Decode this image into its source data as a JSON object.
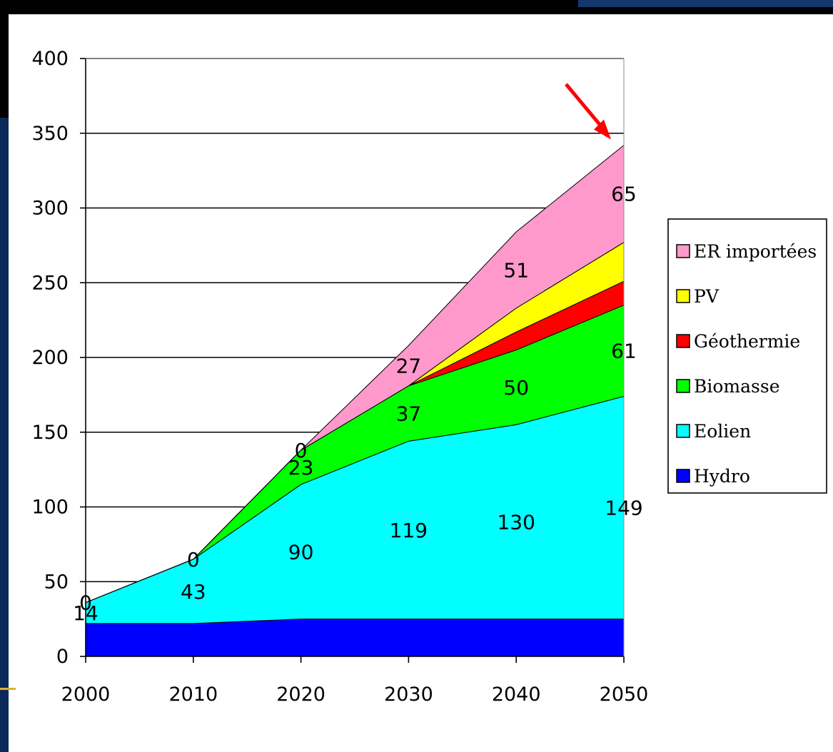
{
  "chart_data": {
    "type": "area",
    "stacked": true,
    "title": "",
    "xlabel": "",
    "ylabel": "",
    "x": [
      2000,
      2010,
      2020,
      2030,
      2040,
      2050
    ],
    "ylim": [
      0,
      400
    ],
    "yticks": [
      0,
      50,
      100,
      150,
      200,
      250,
      300,
      350,
      400
    ],
    "grid": "horizontal",
    "legend_position": "right",
    "series": [
      {
        "name": "Hydro",
        "color": "#0000ff",
        "values": [
          22,
          22,
          25,
          25,
          25,
          25
        ],
        "labels": [
          "",
          "",
          "",
          "",
          "",
          ""
        ]
      },
      {
        "name": "Eolien",
        "color": "#00ffff",
        "values": [
          14,
          43,
          90,
          119,
          130,
          149
        ],
        "labels": [
          "14",
          "43",
          "90",
          "119",
          "130",
          "149"
        ]
      },
      {
        "name": "Biomasse",
        "color": "#00ff00",
        "values": [
          0,
          0,
          23,
          37,
          50,
          61
        ],
        "labels": [
          "",
          "",
          "23",
          "37",
          "50",
          "61"
        ]
      },
      {
        "name": "Géothermie",
        "color": "#ff0000",
        "values": [
          0,
          0,
          0,
          0,
          12,
          16
        ],
        "labels": [
          "",
          "",
          "",
          "",
          "",
          ""
        ]
      },
      {
        "name": "PV",
        "color": "#ffff00",
        "values": [
          0,
          0,
          0,
          0,
          16,
          26
        ],
        "labels": [
          "",
          "",
          "",
          "",
          "",
          ""
        ]
      },
      {
        "name": "ER importées",
        "color": "#ff99cc",
        "values": [
          0,
          0,
          0,
          27,
          51,
          65
        ],
        "labels": [
          "0",
          "0",
          "0",
          "27",
          "51",
          "65"
        ]
      }
    ],
    "annotations": [
      {
        "type": "arrow",
        "color": "#ff0000",
        "points_to": "2050 total"
      }
    ]
  }
}
